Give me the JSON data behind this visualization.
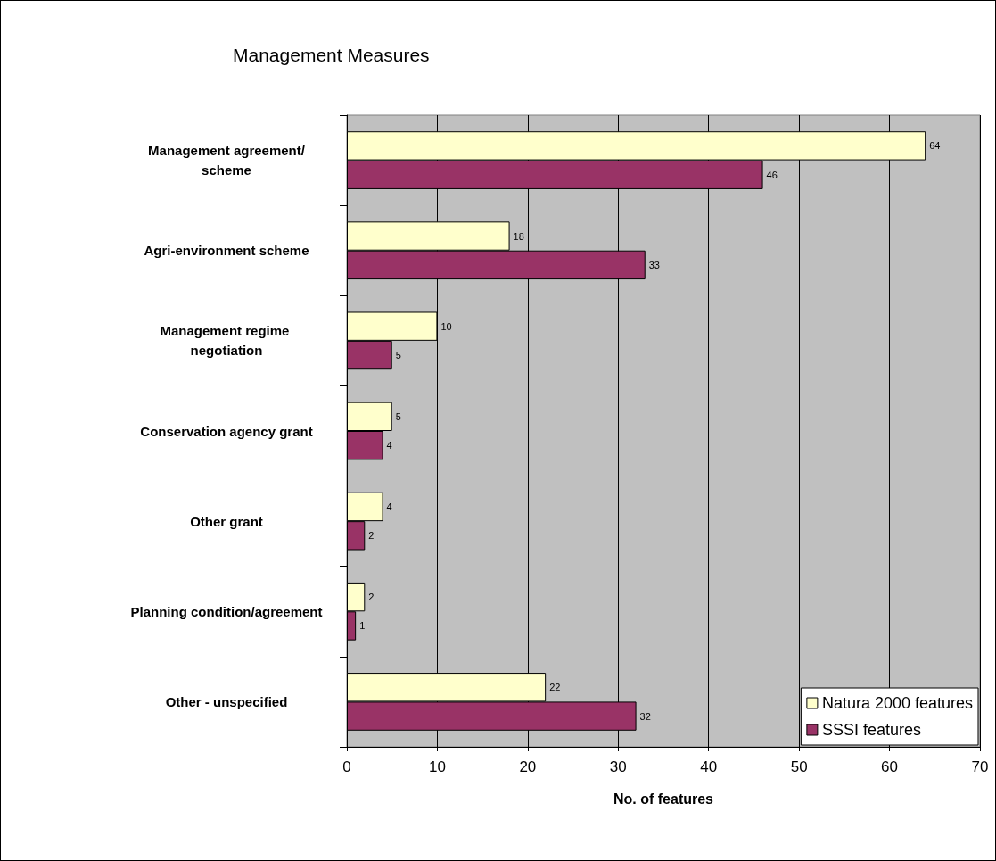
{
  "chart_data": {
    "type": "bar",
    "orientation": "horizontal",
    "title": "Management Measures",
    "xlabel": "No. of features",
    "categories": [
      "Management agreement/scheme",
      "Agri-environment scheme",
      "Management regime negotiation",
      "Conservation agency grant",
      "Other grant",
      "Planning condition/agreement",
      "Other - unspecified"
    ],
    "series": [
      {
        "name": "Natura 2000 features",
        "color": "#ffffcc",
        "values": [
          64,
          18,
          10,
          5,
          4,
          2,
          22
        ]
      },
      {
        "name": "SSSI features",
        "color": "#993366",
        "values": [
          46,
          33,
          5,
          4,
          2,
          1,
          32
        ]
      }
    ],
    "xlim": [
      0,
      70
    ],
    "xticks": [
      0,
      10,
      20,
      30,
      40,
      50,
      60,
      70
    ],
    "grid": "x",
    "legend": "bottom right",
    "data_labels": true
  }
}
